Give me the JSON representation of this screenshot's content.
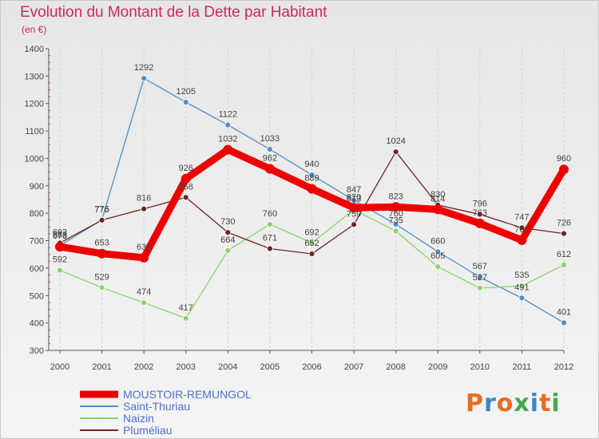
{
  "chart_title": "Evolution du Montant de la Dette par Habitant",
  "chart_unit": "(en €)",
  "logo": {
    "text": "Proxiti",
    "letter_colors": [
      "#e86d1f",
      "#3d86c6",
      "#e86d1f",
      "#48a84b",
      "#3d86c6",
      "#e86d1f",
      "#48a84b"
    ]
  },
  "chart_data": {
    "type": "line",
    "title": "Evolution du Montant de la Dette par Habitant",
    "ylabel": "(en €)",
    "xlabel": "",
    "categories": [
      "2000",
      "2001",
      "2002",
      "2003",
      "2004",
      "2005",
      "2006",
      "2007",
      "2008",
      "2009",
      "2010",
      "2011",
      "2012"
    ],
    "ylim": [
      300,
      1400
    ],
    "yticks": [
      300,
      400,
      500,
      600,
      700,
      800,
      900,
      1000,
      1100,
      1200,
      1300,
      1400
    ],
    "grid": "vertical-dashed",
    "legend": "bottom-left",
    "series": [
      {
        "name": "MOUSTOIR-REMUNGOL",
        "color": "#ee0000",
        "values": [
          678,
          653,
          638,
          926,
          1032,
          962,
          889,
          820,
          823,
          814,
          763,
          702,
          960
        ]
      },
      {
        "name": "Saint-Thuriau",
        "color": "#4d8ec9",
        "values": [
          683,
          776,
          1292,
          1205,
          1122,
          1033,
          940,
          847,
          760,
          660,
          567,
          491,
          401
        ]
      },
      {
        "name": "Naizin",
        "color": "#88d468",
        "values": [
          592,
          529,
          474,
          417,
          664,
          760,
          692,
          813,
          735,
          605,
          527,
          535,
          612
        ]
      },
      {
        "name": "Pluméliau",
        "color": "#6e2424",
        "values": [
          692,
          775,
          816,
          858,
          730,
          671,
          652,
          759,
          1024,
          830,
          796,
          747,
          726
        ]
      }
    ]
  }
}
